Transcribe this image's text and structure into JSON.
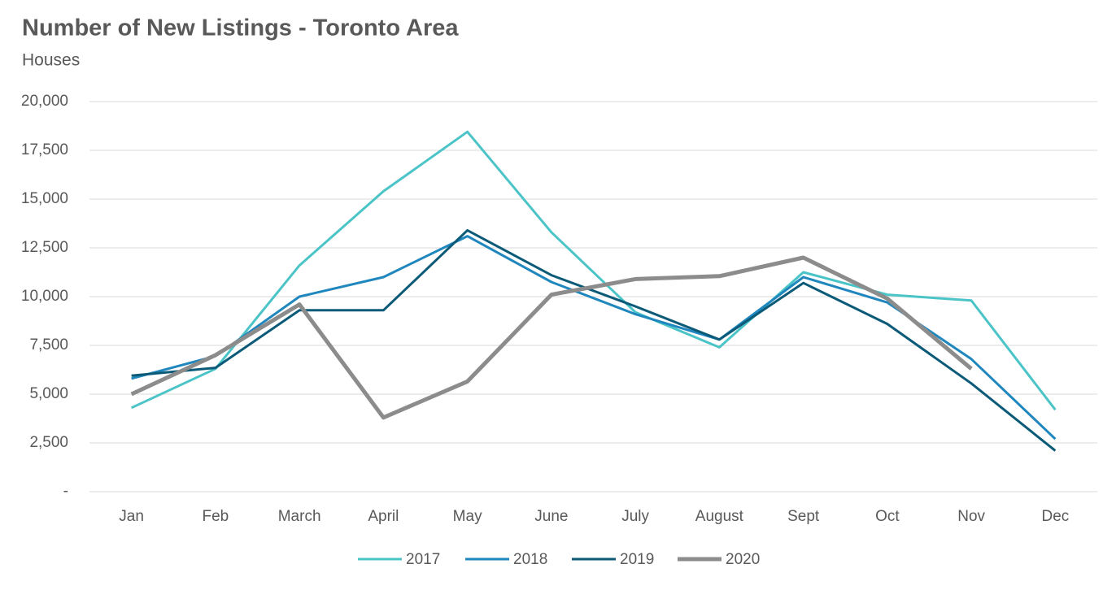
{
  "chart_data": {
    "type": "line",
    "title": "Number of New Listings - Toronto Area",
    "subtitle": "Houses",
    "categories": [
      "Jan",
      "Feb",
      "March",
      "April",
      "May",
      "June",
      "July",
      "August",
      "Sept",
      "Oct",
      "Nov",
      "Dec"
    ],
    "series": [
      {
        "name": "2017",
        "color": "#4bc4c8",
        "values": [
          4300,
          6300,
          11600,
          15400,
          18450,
          13300,
          9200,
          7400,
          11250,
          10100,
          9800,
          4200
        ]
      },
      {
        "name": "2018",
        "color": "#1f87bd",
        "values": [
          5800,
          6950,
          10000,
          11000,
          13100,
          10750,
          9100,
          7800,
          11000,
          9700,
          6800,
          2700
        ]
      },
      {
        "name": "2019",
        "color": "#0b5a78",
        "values": [
          5950,
          6350,
          9300,
          9300,
          13400,
          11100,
          9500,
          7800,
          10700,
          8600,
          5550,
          2100
        ]
      },
      {
        "name": "2020",
        "color": "#8c8c8c",
        "values": [
          5000,
          7000,
          9600,
          3800,
          5650,
          10100,
          10900,
          11050,
          12000,
          9900,
          6300,
          null
        ]
      }
    ],
    "ylim": [
      0,
      20000
    ],
    "yticks": [
      {
        "value": 0,
        "label": "-"
      },
      {
        "value": 2500,
        "label": "2,500"
      },
      {
        "value": 5000,
        "label": "5,000"
      },
      {
        "value": 7500,
        "label": "7,500"
      },
      {
        "value": 10000,
        "label": "10,000"
      },
      {
        "value": 12500,
        "label": "12,500"
      },
      {
        "value": 15000,
        "label": "15,000"
      },
      {
        "value": 17500,
        "label": "17,500"
      },
      {
        "value": 20000,
        "label": "20,000"
      }
    ],
    "grid": true,
    "legend": "bottom"
  }
}
